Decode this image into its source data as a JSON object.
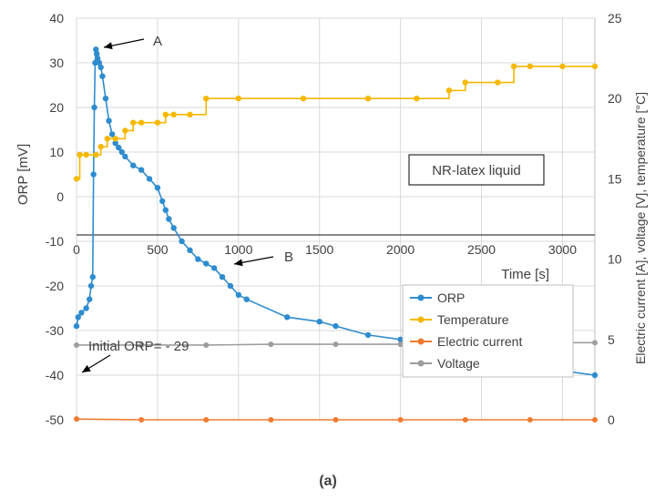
{
  "chart_data": {
    "type": "line",
    "caption": "(a)",
    "xlabel": "Time [s]",
    "ylabel_left": "ORP [mV]",
    "ylabel_right": "Electric current [A], voltage [V], temperature [°C]",
    "x_ticks": [
      0,
      500,
      1000,
      1500,
      2000,
      2500,
      3000
    ],
    "y_left_ticks": [
      40,
      30,
      20,
      10,
      0,
      -10,
      -20,
      -30,
      -40,
      -50
    ],
    "y_right_ticks": [
      25,
      20,
      15,
      10,
      5,
      0
    ],
    "xlim": [
      0,
      3200
    ],
    "ylim_left": [
      -50,
      40
    ],
    "ylim_right": [
      0,
      25
    ],
    "grid": true,
    "legend_position": "right-center",
    "annotations": [
      {
        "text": "A",
        "x": 110,
        "y": 33
      },
      {
        "text": "B",
        "x": 870,
        "y": -17
      },
      {
        "text": "Initial ORP= - 29",
        "x": 0,
        "y": -29
      },
      {
        "text": "NR-latex liquid",
        "boxed": true
      }
    ],
    "series": [
      {
        "name": "ORP",
        "axis": "left",
        "color": "#2e8ccf",
        "x": [
          0,
          10,
          30,
          60,
          80,
          90,
          100,
          105,
          110,
          115,
          120,
          125,
          130,
          140,
          150,
          160,
          180,
          200,
          220,
          240,
          260,
          280,
          300,
          350,
          400,
          450,
          500,
          530,
          550,
          570,
          600,
          650,
          700,
          750,
          800,
          850,
          900,
          950,
          1000,
          1050,
          1300,
          1500,
          1600,
          1800,
          2000,
          2200,
          2400,
          2600,
          2800,
          3000,
          3200
        ],
        "y": [
          -29,
          -27,
          -26,
          -25,
          -23,
          -20,
          -18,
          5,
          20,
          30,
          33,
          32,
          31,
          30,
          29,
          27,
          22,
          17,
          14,
          12,
          11,
          10,
          9,
          7,
          6,
          4,
          2,
          -1,
          -3,
          -5,
          -7,
          -10,
          -12,
          -14,
          -15,
          -16,
          -18,
          -20,
          -22,
          -23,
          -27,
          -28,
          -29,
          -31,
          -32,
          -33,
          -35,
          -36,
          -38,
          -39,
          -40
        ]
      },
      {
        "name": "Temperature",
        "axis": "right",
        "color": "#f6b800",
        "x": [
          0,
          20,
          60,
          120,
          150,
          190,
          240,
          300,
          350,
          400,
          500,
          550,
          600,
          700,
          800,
          1000,
          1400,
          1800,
          2100,
          2300,
          2400,
          2600,
          2700,
          2800,
          3000,
          3200
        ],
        "y": [
          15,
          16.5,
          16.5,
          16.5,
          17,
          17.5,
          17.5,
          18,
          18.5,
          18.5,
          18.5,
          19,
          19,
          19,
          20,
          20,
          20,
          20,
          20,
          20.5,
          21,
          21,
          22,
          22,
          22,
          22
        ]
      },
      {
        "name": "Electric current",
        "axis": "right",
        "color": "#f07a30",
        "x": [
          0,
          400,
          800,
          1200,
          1600,
          2000,
          2400,
          2800,
          3200
        ],
        "y": [
          0.05,
          0,
          0,
          0,
          0,
          0,
          0,
          0,
          0
        ]
      },
      {
        "name": "Voltage",
        "axis": "right",
        "color": "#9d9d9d",
        "x": [
          0,
          400,
          800,
          1200,
          1600,
          2000,
          2400,
          2800,
          3200
        ],
        "y": [
          4.65,
          4.65,
          4.65,
          4.7,
          4.7,
          4.7,
          4.75,
          4.8,
          4.8
        ]
      }
    ]
  }
}
